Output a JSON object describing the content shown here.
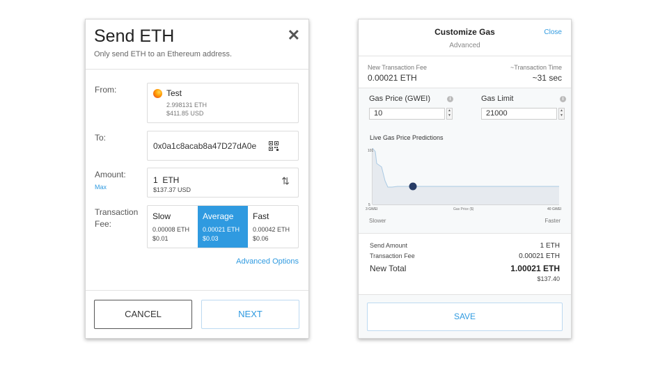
{
  "send": {
    "title": "Send ETH",
    "subtitle": "Only send ETH to an Ethereum address.",
    "close_glyph": "✕",
    "from_label": "From:",
    "from_account": "Test",
    "from_balance_eth": "2.998131 ETH",
    "from_balance_usd": "$411.85 USD",
    "to_label": "To:",
    "to_address": "0x0a1c8acab8a47D27dA0e",
    "amount_label": "Amount:",
    "max_label": "Max",
    "amount_value": "1  ETH",
    "amount_usd": "$137.37 USD",
    "swap_glyph": "⇅",
    "fee_label_1": "Transaction",
    "fee_label_2": "Fee:",
    "fee_options": [
      {
        "name": "Slow",
        "eth": "0.00008 ETH",
        "usd": "$0.01"
      },
      {
        "name": "Average",
        "eth": "0.00021 ETH",
        "usd": "$0.03"
      },
      {
        "name": "Fast",
        "eth": "0.00042 ETH",
        "usd": "$0.06"
      }
    ],
    "selected_fee": "Average",
    "advanced_link": "Advanced Options",
    "cancel_label": "CANCEL",
    "next_label": "NEXT"
  },
  "gas": {
    "title": "Customize Gas",
    "subtitle": "Advanced",
    "close_label": "Close",
    "new_fee_label": "New Transaction Fee",
    "new_fee_value": "0.00021 ETH",
    "tx_time_label": "~Transaction Time",
    "tx_time_value": "~31 sec",
    "gas_price_label": "Gas Price (GWEI)",
    "gas_price_value": "10",
    "gas_limit_label": "Gas Limit",
    "gas_limit_value": "21000",
    "info_glyph": "i",
    "predictions_label": "Live Gas Price Predictions",
    "chart": {
      "y_top_label": "101",
      "y_bottom_label": "5",
      "x_left_label": "3 GWEI",
      "x_center_label": "Gas Price ($)",
      "x_right_label": "40 GWEI",
      "slower_label": "Slower",
      "faster_label": "Faster"
    },
    "send_amount_label": "Send Amount",
    "send_amount_value": "1 ETH",
    "tx_fee_label": "Transaction Fee",
    "tx_fee_value": "0.00021 ETH",
    "new_total_label": "New Total",
    "new_total_value": "1.00021 ETH",
    "new_total_usd": "$137.40",
    "save_label": "SAVE"
  },
  "colors": {
    "accent": "#2f9ae0",
    "chart_fill": "#e6eaef",
    "chart_line": "#a9c9e3",
    "chart_dot": "#273c66"
  }
}
